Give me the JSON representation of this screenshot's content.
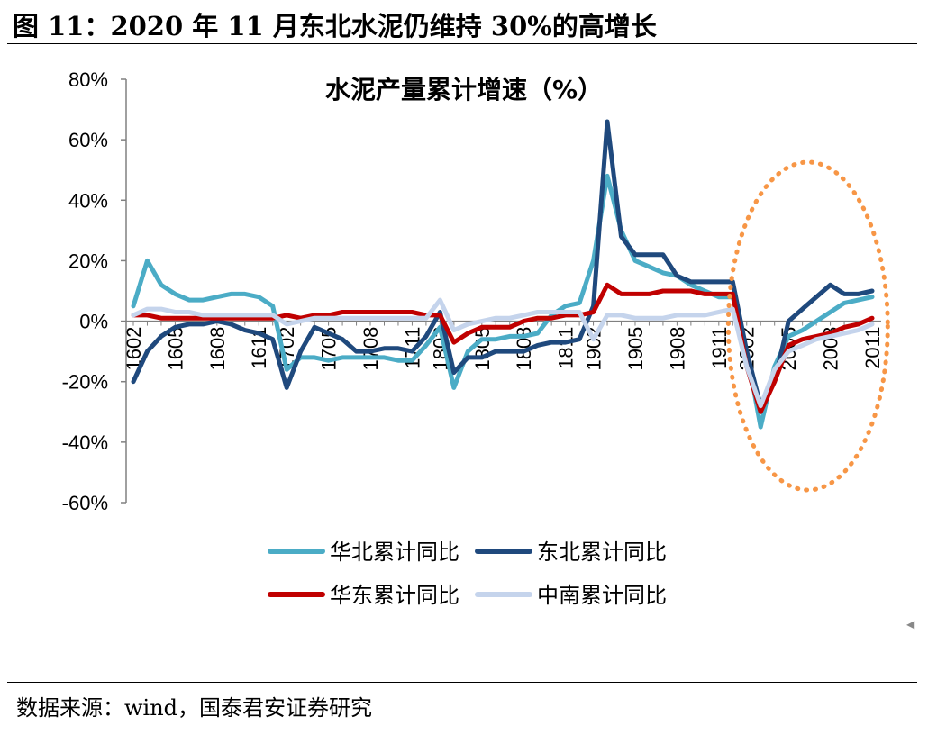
{
  "figure_title": "图 11：2020 年 11 月东北水泥仍维持 30%的高增长",
  "source": "数据来源：wind，国泰君安证券研究",
  "chart_data": {
    "type": "line",
    "title": "水泥产量累计增速（%）",
    "xlabel": "",
    "ylabel": "",
    "ylim": [
      -60,
      80
    ],
    "yticks": [
      -60,
      -40,
      -20,
      0,
      20,
      40,
      60,
      80
    ],
    "ytick_labels": [
      "-60%",
      "-40%",
      "-20%",
      "0%",
      "20%",
      "40%",
      "60%",
      "80%"
    ],
    "x": [
      "1602",
      "1603",
      "1604",
      "1605",
      "1606",
      "1607",
      "1608",
      "1609",
      "1610",
      "1611",
      "1612",
      "1702",
      "1703",
      "1704",
      "1705",
      "1706",
      "1707",
      "1708",
      "1709",
      "1710",
      "1711",
      "1712",
      "1802",
      "1803",
      "1804",
      "1805",
      "1806",
      "1807",
      "1808",
      "1809",
      "1810",
      "1811",
      "1812",
      "1902",
      "1903",
      "1904",
      "1905",
      "1906",
      "1907",
      "1908",
      "1909",
      "1910",
      "1911",
      "1912",
      "2002",
      "2003",
      "2004",
      "2005",
      "2006",
      "2007",
      "2008",
      "2009",
      "2010",
      "2011"
    ],
    "xtick_labels": [
      "1602",
      "1605",
      "1608",
      "1611",
      "1702",
      "1705",
      "1708",
      "1711",
      "1802",
      "1805",
      "1808",
      "1811",
      "1902",
      "1905",
      "1908",
      "1911",
      "2002",
      "2005",
      "2008",
      "2011"
    ],
    "legend_position": "bottom",
    "grid": false,
    "series": [
      {
        "name": "华北累计同比",
        "color": "#4BACC6",
        "values": [
          5,
          20,
          12,
          9,
          7,
          7,
          8,
          9,
          9,
          8,
          5,
          -16,
          -12,
          -12,
          -13,
          -12,
          -12,
          -12,
          -12,
          -13,
          -13,
          -8,
          -2,
          -22,
          -10,
          -6,
          -6,
          -5,
          -5,
          -4,
          2,
          5,
          6,
          20,
          48,
          30,
          20,
          18,
          16,
          15,
          12,
          10,
          8,
          8,
          -10,
          -35,
          -15,
          -5,
          -3,
          0,
          3,
          6,
          7,
          8
        ]
      },
      {
        "name": "东北累计同比",
        "color": "#1F497D",
        "values": [
          -20,
          -10,
          -5,
          -2,
          -1,
          -1,
          0,
          -1,
          -3,
          -4,
          -6,
          -22,
          -10,
          -2,
          -4,
          -6,
          -10,
          -10,
          -9,
          -9,
          -10,
          -5,
          3,
          -17,
          -12,
          -12,
          -10,
          -10,
          -10,
          -8,
          -7,
          -7,
          -6,
          5,
          66,
          28,
          22,
          22,
          22,
          15,
          13,
          13,
          13,
          13,
          -10,
          -28,
          -20,
          0,
          4,
          8,
          12,
          9,
          9,
          10
        ]
      },
      {
        "name": "华东累计同比",
        "color": "#C00000",
        "values": [
          2,
          2,
          1,
          1,
          1,
          1,
          1,
          1,
          1,
          1,
          1,
          2,
          1,
          2,
          2,
          3,
          3,
          3,
          3,
          3,
          3,
          2,
          2,
          -7,
          -4,
          -2,
          -2,
          -2,
          0,
          1,
          1,
          2,
          2,
          3,
          12,
          9,
          9,
          9,
          10,
          10,
          10,
          9,
          9,
          9,
          -15,
          -30,
          -20,
          -8,
          -6,
          -5,
          -4,
          -2,
          -1,
          1
        ]
      },
      {
        "name": "中南累计同比",
        "color": "#C5D4EC",
        "values": [
          2,
          4,
          4,
          3,
          3,
          2,
          2,
          2,
          2,
          2,
          2,
          -1,
          0,
          1,
          1,
          1,
          1,
          1,
          1,
          1,
          1,
          1,
          7,
          -3,
          -1,
          0,
          1,
          1,
          2,
          3,
          3,
          3,
          3,
          -6,
          2,
          2,
          1,
          1,
          1,
          2,
          2,
          2,
          3,
          4,
          -15,
          -28,
          -16,
          -10,
          -8,
          -6,
          -5,
          -4,
          -3,
          -1
        ]
      }
    ],
    "annotations": [
      {
        "type": "ellipse",
        "style": "dotted",
        "color": "#F79646",
        "x_range": [
          "2001",
          "2011"
        ]
      }
    ]
  }
}
